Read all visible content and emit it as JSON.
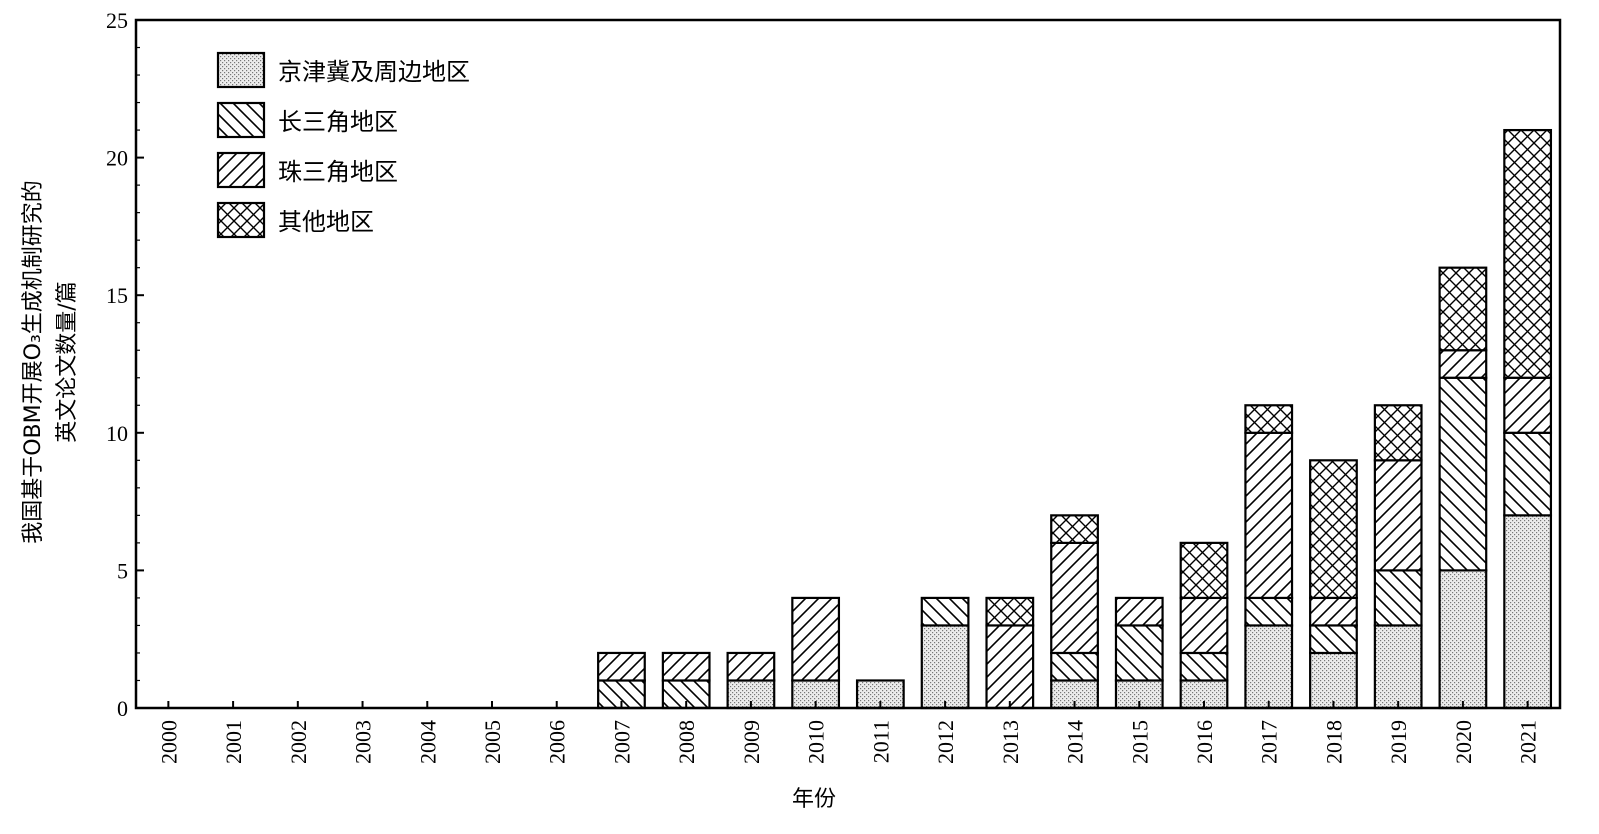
{
  "chart_data": {
    "type": "bar",
    "stacked": true,
    "ylabel_line1": "我国基于OBM开展O₃生成机制研究的",
    "ylabel_line2": "英文论文数量/篇",
    "xlabel": "年份",
    "ylim": [
      0,
      25
    ],
    "yticks": [
      "0",
      "5",
      "10",
      "15",
      "20",
      "25"
    ],
    "grid": false,
    "legend_position": "top-left",
    "categories": [
      "2000",
      "2001",
      "2002",
      "2003",
      "2004",
      "2005",
      "2006",
      "2007",
      "2008",
      "2009",
      "2010",
      "2011",
      "2012",
      "2013",
      "2014",
      "2015",
      "2016",
      "2017",
      "2018",
      "2019",
      "2020",
      "2021"
    ],
    "series": [
      {
        "name": "京津冀及周边地区",
        "pattern": "dots",
        "values": [
          0,
          0,
          0,
          0,
          0,
          0,
          0,
          0,
          0,
          1,
          1,
          1,
          3,
          0,
          1,
          1,
          1,
          3,
          2,
          3,
          5,
          7
        ]
      },
      {
        "name": "长三角地区",
        "pattern": "backslash",
        "values": [
          0,
          0,
          0,
          0,
          0,
          0,
          0,
          1,
          1,
          0,
          0,
          0,
          1,
          0,
          1,
          2,
          1,
          1,
          1,
          2,
          7,
          3
        ]
      },
      {
        "name": "珠三角地区",
        "pattern": "slash",
        "values": [
          0,
          0,
          0,
          0,
          0,
          0,
          0,
          1,
          1,
          1,
          3,
          0,
          0,
          3,
          4,
          1,
          2,
          6,
          1,
          4,
          1,
          2
        ]
      },
      {
        "name": "其他地区",
        "pattern": "crosshatch",
        "values": [
          0,
          0,
          0,
          0,
          0,
          0,
          0,
          0,
          0,
          0,
          0,
          0,
          0,
          1,
          1,
          0,
          2,
          1,
          5,
          2,
          3,
          9
        ]
      }
    ]
  }
}
